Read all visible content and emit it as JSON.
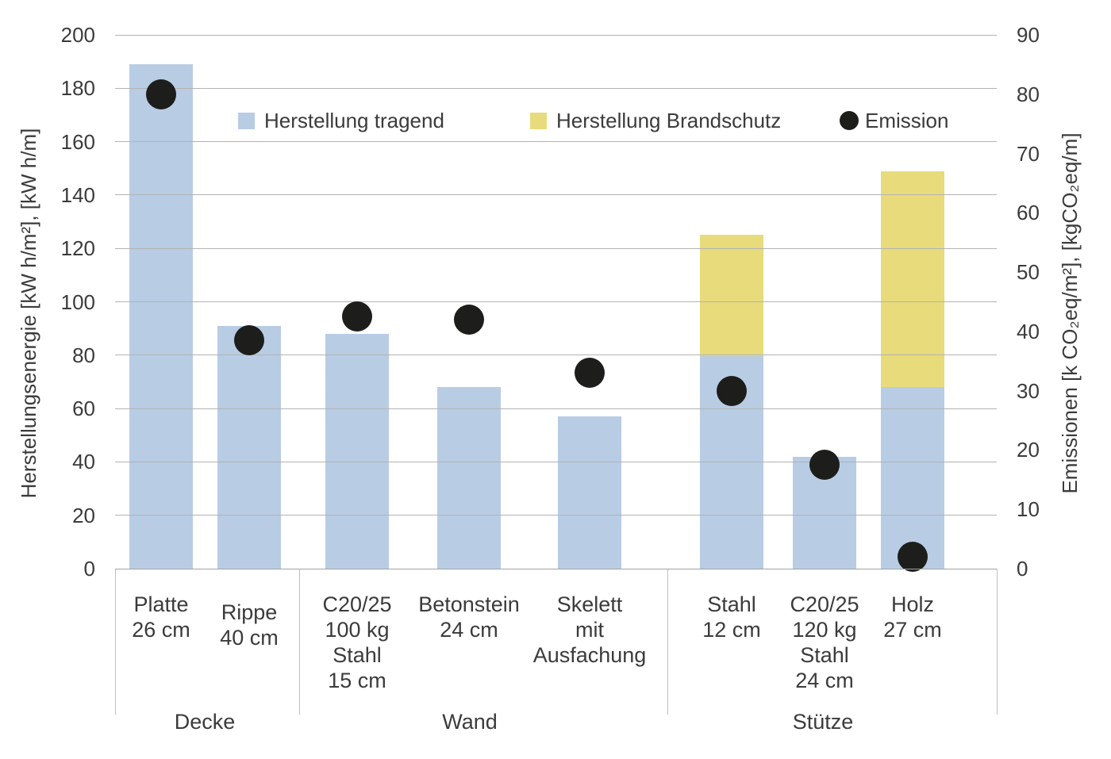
{
  "legend": {
    "items": [
      {
        "label": "Herstellung tragend",
        "shape": "square",
        "color": "#b8cce4"
      },
      {
        "label": "Herstellung Brandschutz",
        "shape": "square",
        "color": "#e7db7c"
      },
      {
        "label": "Emission",
        "shape": "circle",
        "color": "#1d1d1b"
      }
    ]
  },
  "chart_data": {
    "type": "bar",
    "stacked": true,
    "orientation": "vertical",
    "grid": true,
    "legend_position": "top-inside",
    "categories": [
      {
        "lines": [
          "Platte",
          "26 cm"
        ],
        "group": "Decke"
      },
      {
        "lines": [
          "Rippe",
          "40 cm"
        ],
        "group": "Decke"
      },
      {
        "lines": [
          "C20/25",
          "100 kg",
          "Stahl",
          "15 cm"
        ],
        "group": "Wand"
      },
      {
        "lines": [
          "Betonstein",
          "24 cm"
        ],
        "group": "Wand"
      },
      {
        "lines": [
          "Skelett",
          "mit",
          "Ausfachung"
        ],
        "group": "Wand"
      },
      {
        "lines": [
          "Stahl",
          "12 cm"
        ],
        "group": "Stütze"
      },
      {
        "lines": [
          "C20/25",
          "120 kg",
          "Stahl",
          "24 cm"
        ],
        "group": "Stütze"
      },
      {
        "lines": [
          "Holz",
          "27 cm"
        ],
        "group": "Stütze"
      }
    ],
    "groups": [
      {
        "label": "Decke",
        "span": [
          0,
          1
        ]
      },
      {
        "label": "Wand",
        "span": [
          2,
          4
        ]
      },
      {
        "label": "Stütze",
        "span": [
          5,
          7
        ]
      }
    ],
    "series": [
      {
        "name": "Herstellung tragend",
        "type": "bar",
        "axis": "left",
        "color": "#b8cce4",
        "values": [
          189,
          91,
          88,
          68,
          57,
          79.5,
          42,
          68
        ]
      },
      {
        "name": "Herstellung Brandschutz",
        "type": "bar",
        "axis": "left",
        "color": "#e7db7c",
        "values": [
          0,
          0,
          0,
          0,
          0,
          45.5,
          0,
          81
        ]
      },
      {
        "name": "Emission",
        "type": "scatter",
        "axis": "right",
        "color": "#1d1d1b",
        "values": [
          80,
          38.5,
          42.5,
          42,
          33,
          30,
          17.5,
          2
        ]
      }
    ],
    "left_axis": {
      "title": "Herstellungsenergie [kW h/m²], [kW h/m]",
      "min": 0,
      "max": 200,
      "step": 20,
      "tick_labels": [
        "0",
        "20",
        "40",
        "60",
        "80",
        "100",
        "120",
        "140",
        "160",
        "180",
        "200"
      ]
    },
    "right_axis": {
      "title": "Emissionen [k CO₂eq/m²], [kgCO₂eq/m]",
      "min": 0,
      "max": 90,
      "step": 10,
      "tick_labels": [
        "0",
        "10",
        "20",
        "30",
        "40",
        "50",
        "60",
        "70",
        "80",
        "90"
      ]
    },
    "colors": {
      "gridline": "#b3b3b3",
      "axis_line": "#a3a3a3",
      "text": "#3b3b3b"
    }
  }
}
